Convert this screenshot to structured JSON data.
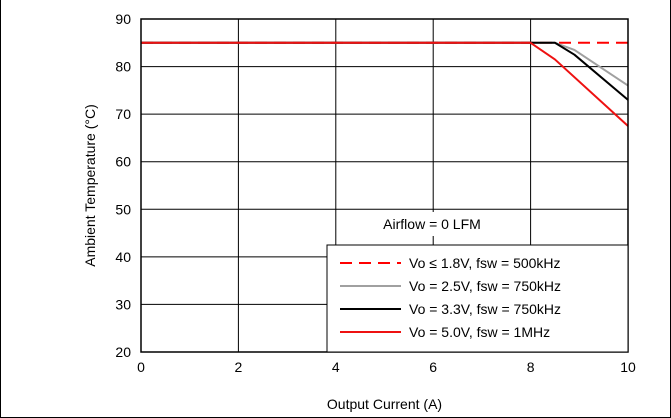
{
  "chart_data": {
    "type": "line",
    "xlabel": "Output Current (A)",
    "ylabel": "Ambient Temperature (°C)",
    "xlim": [
      0,
      10
    ],
    "ylim": [
      20,
      90
    ],
    "xticks": [
      "0",
      "2",
      "4",
      "6",
      "8",
      "10"
    ],
    "yticks": [
      "20",
      "30",
      "40",
      "50",
      "60",
      "70",
      "80",
      "90"
    ],
    "grid": true,
    "annotation": "Airflow = 0 LFM",
    "legend_position": "bottom-right",
    "series": [
      {
        "name": "Vo ≤ 1.8V, fsw = 500kHz",
        "color": "#ff0000",
        "dash": true,
        "x": [
          0,
          10
        ],
        "y": [
          85,
          85
        ]
      },
      {
        "name": "Vo = 2.5V, fsw = 750kHz",
        "color": "#a0a0a0",
        "dash": false,
        "x": [
          0,
          8.5,
          8.9,
          10
        ],
        "y": [
          85,
          85,
          83.5,
          76
        ]
      },
      {
        "name": "Vo = 3.3V, fsw = 750kHz",
        "color": "#000000",
        "dash": false,
        "x": [
          0,
          8.5,
          8.9,
          10
        ],
        "y": [
          85,
          85,
          82.5,
          73
        ]
      },
      {
        "name": "Vo = 5.0V, fsw = 1MHz",
        "color": "#ee1111",
        "dash": false,
        "x": [
          0,
          8.0,
          8.5,
          10
        ],
        "y": [
          85,
          85,
          81.5,
          67.5
        ]
      }
    ]
  }
}
